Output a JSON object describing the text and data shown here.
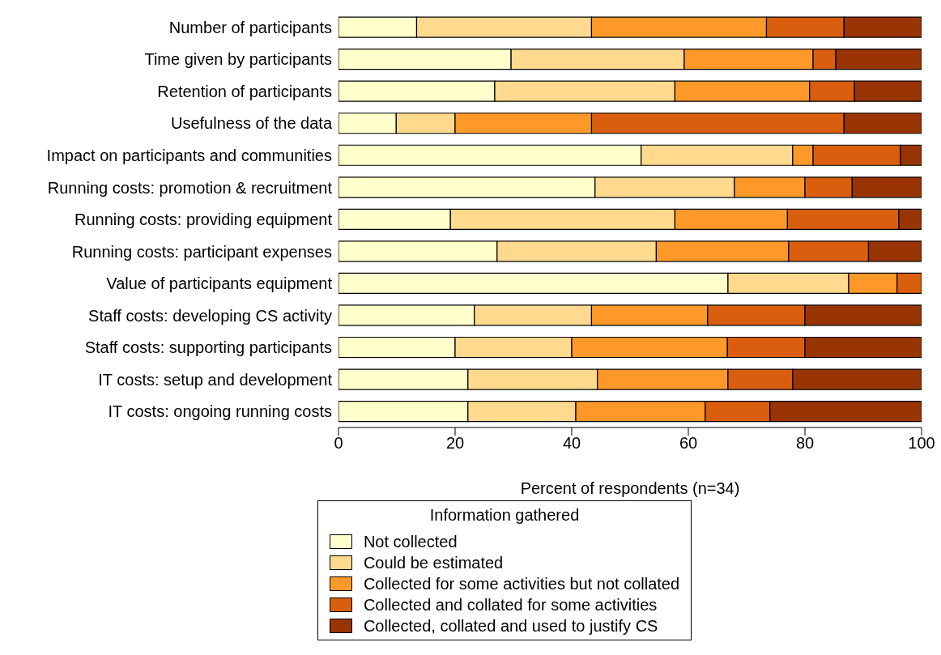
{
  "chart_data": {
    "type": "bar",
    "orientation": "horizontal",
    "stacked": true,
    "xlabel": "Percent of respondents (n=34)",
    "legend_title": "Information gathered",
    "legend": "bottom",
    "grid": false,
    "categories": [
      "Number of participants",
      "Time given by participants",
      "Retention of participants",
      "Usefulness of the data",
      "Impact on participants and communities",
      "Running costs: promotion & recruitment",
      "Running costs: providing equipment",
      "Running costs: participant expenses",
      "Value of participants equipment",
      "Staff costs: developing CS activity",
      "Staff costs: supporting participants",
      "IT costs: setup and development",
      "IT costs: ongoing running costs"
    ],
    "xlim": [
      0,
      100
    ],
    "xticks": [
      0,
      20,
      40,
      60,
      80,
      100
    ],
    "series": [
      {
        "name": "Not collected",
        "color": "#ffffcc",
        "values": [
          13.4,
          29.6,
          26.8,
          9.9,
          51.9,
          44.0,
          19.2,
          27.2,
          66.8,
          23.3,
          20.0,
          22.2,
          22.2
        ]
      },
      {
        "name": "Could be estimated",
        "color": "#fed98e",
        "values": [
          30.0,
          29.7,
          30.9,
          10.1,
          26.0,
          23.9,
          38.5,
          27.3,
          20.7,
          20.1,
          20.0,
          22.2,
          18.5
        ]
      },
      {
        "name": "Collected for some activities but not collated",
        "color": "#fe9929",
        "values": [
          30.0,
          22.1,
          23.1,
          23.4,
          3.5,
          12.1,
          19.3,
          22.7,
          8.3,
          19.9,
          26.7,
          22.4,
          22.2
        ]
      },
      {
        "name": "Collected and collated for some activities",
        "color": "#d95f0e",
        "values": [
          13.3,
          3.9,
          7.7,
          43.3,
          15.0,
          8.1,
          19.1,
          13.7,
          4.2,
          16.7,
          13.3,
          11.1,
          11.1
        ]
      },
      {
        "name": "Collected, collated and used to justify CS",
        "color": "#993404",
        "values": [
          13.3,
          14.7,
          11.5,
          13.3,
          3.6,
          11.9,
          3.9,
          9.1,
          0,
          20.0,
          20.0,
          22.1,
          26.0
        ]
      }
    ]
  }
}
